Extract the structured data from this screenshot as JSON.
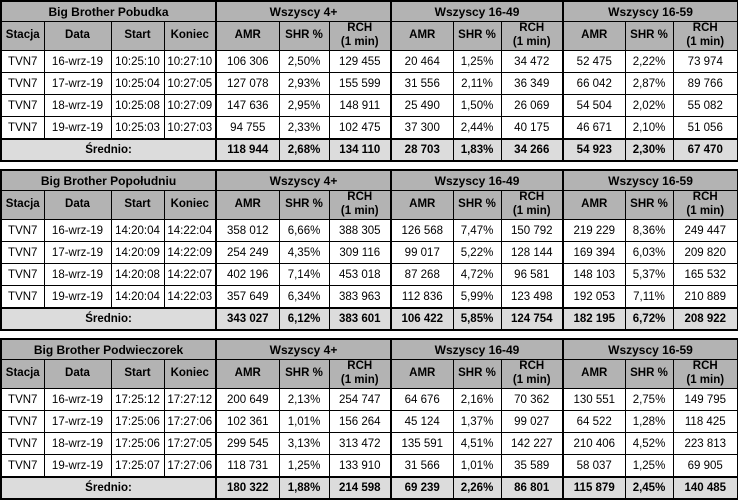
{
  "colors": {
    "header_bg": "#b3b3b3",
    "average_bg": "#dcdcdc",
    "row_bg": "#ffffff",
    "border": "#000000",
    "text": "#000000"
  },
  "columns": {
    "station": "Stacja",
    "date": "Data",
    "start": "Start",
    "end": "Koniec",
    "groups": [
      "Wszyscy 4+",
      "Wszyscy 16-49",
      "Wszyscy 16-59"
    ],
    "metrics": [
      "AMR",
      "SHR %",
      "RCH\n(1 min)"
    ]
  },
  "average_label": "Średnio:",
  "tables": [
    {
      "title": "Big Brother Pobudka",
      "rows": [
        {
          "station": "TVN7",
          "date": "16-wrz-19",
          "start": "10:25:10",
          "end": "10:27:10",
          "values": [
            "106 306",
            "2,50%",
            "129 455",
            "20 464",
            "1,25%",
            "34 472",
            "52 475",
            "2,22%",
            "73 974"
          ]
        },
        {
          "station": "TVN7",
          "date": "17-wrz-19",
          "start": "10:25:04",
          "end": "10:27:05",
          "values": [
            "127 078",
            "2,93%",
            "155 599",
            "31 556",
            "2,11%",
            "36 349",
            "66 042",
            "2,87%",
            "89 766"
          ]
        },
        {
          "station": "TVN7",
          "date": "18-wrz-19",
          "start": "10:25:08",
          "end": "10:27:09",
          "values": [
            "147 636",
            "2,95%",
            "148 911",
            "25 490",
            "1,50%",
            "26 069",
            "54 504",
            "2,02%",
            "55 082"
          ]
        },
        {
          "station": "TVN7",
          "date": "19-wrz-19",
          "start": "10:25:03",
          "end": "10:27:03",
          "values": [
            "94 755",
            "2,33%",
            "102 475",
            "37 300",
            "2,44%",
            "40 175",
            "46 671",
            "2,10%",
            "51 056"
          ]
        }
      ],
      "average": [
        "118 944",
        "2,68%",
        "134 110",
        "28 703",
        "1,83%",
        "34 266",
        "54 923",
        "2,30%",
        "67 470"
      ]
    },
    {
      "title": "Big Brother Popołudniu",
      "rows": [
        {
          "station": "TVN7",
          "date": "16-wrz-19",
          "start": "14:20:04",
          "end": "14:22:04",
          "values": [
            "358 012",
            "6,66%",
            "388 305",
            "126 568",
            "7,47%",
            "150 792",
            "219 229",
            "8,36%",
            "249 447"
          ]
        },
        {
          "station": "TVN7",
          "date": "17-wrz-19",
          "start": "14:20:09",
          "end": "14:22:09",
          "values": [
            "254 249",
            "4,35%",
            "309 116",
            "99 017",
            "5,22%",
            "128 144",
            "169 394",
            "6,03%",
            "209 820"
          ]
        },
        {
          "station": "TVN7",
          "date": "18-wrz-19",
          "start": "14:20:08",
          "end": "14:22:07",
          "values": [
            "402 196",
            "7,14%",
            "453 018",
            "87 268",
            "4,72%",
            "96 581",
            "148 103",
            "5,37%",
            "165 532"
          ]
        },
        {
          "station": "TVN7",
          "date": "19-wrz-19",
          "start": "14:20:04",
          "end": "14:22:03",
          "values": [
            "357 649",
            "6,34%",
            "383 963",
            "112 836",
            "5,99%",
            "123 498",
            "192 053",
            "7,11%",
            "210 889"
          ]
        }
      ],
      "average": [
        "343 027",
        "6,12%",
        "383 601",
        "106 422",
        "5,85%",
        "124 754",
        "182 195",
        "6,72%",
        "208 922"
      ]
    },
    {
      "title": "Big Brother Podwieczorek",
      "rows": [
        {
          "station": "TVN7",
          "date": "16-wrz-19",
          "start": "17:25:12",
          "end": "17:27:12",
          "values": [
            "200 649",
            "2,13%",
            "254 747",
            "64 676",
            "2,16%",
            "70 362",
            "130 551",
            "2,75%",
            "149 795"
          ]
        },
        {
          "station": "TVN7",
          "date": "17-wrz-19",
          "start": "17:25:06",
          "end": "17:27:06",
          "values": [
            "102 361",
            "1,01%",
            "156 264",
            "45 124",
            "1,37%",
            "99 027",
            "64 522",
            "1,28%",
            "118 425"
          ]
        },
        {
          "station": "TVN7",
          "date": "18-wrz-19",
          "start": "17:25:06",
          "end": "17:27:05",
          "values": [
            "299 545",
            "3,13%",
            "313 472",
            "135 591",
            "4,51%",
            "142 227",
            "210 406",
            "4,52%",
            "223 813"
          ]
        },
        {
          "station": "TVN7",
          "date": "19-wrz-19",
          "start": "17:25:07",
          "end": "17:27:06",
          "values": [
            "118 731",
            "1,25%",
            "133 910",
            "31 566",
            "1,01%",
            "35 589",
            "58 037",
            "1,25%",
            "69 905"
          ]
        }
      ],
      "average": [
        "180 322",
        "1,88%",
        "214 598",
        "69 239",
        "2,26%",
        "86 801",
        "115 879",
        "2,45%",
        "140 485"
      ]
    }
  ]
}
